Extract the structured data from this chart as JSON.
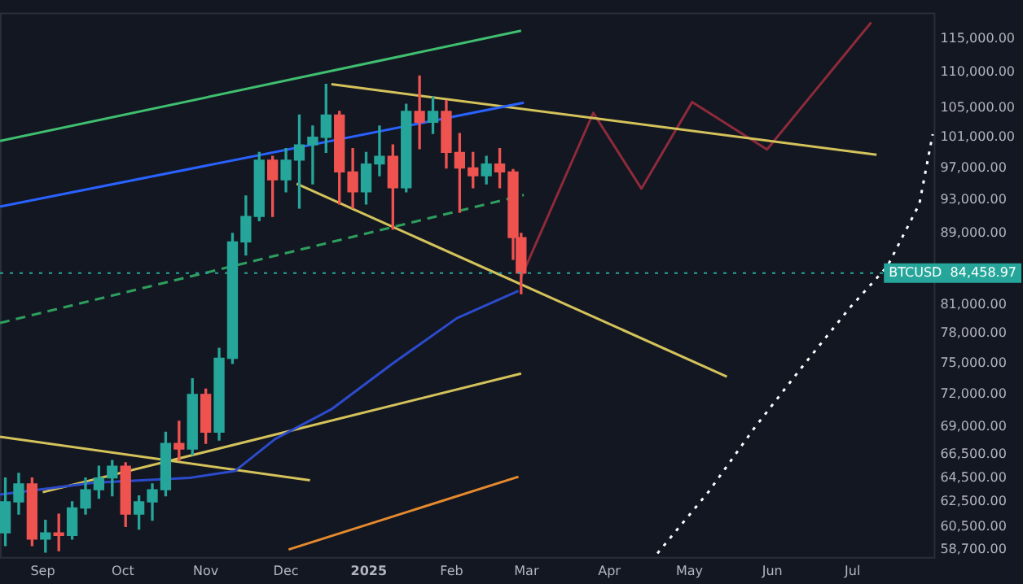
{
  "chart_data": {
    "type": "candlestick",
    "x": [
      "2024-08-18",
      "2024-08-23",
      "2024-08-28",
      "2024-09-02",
      "2024-09-07",
      "2024-09-12",
      "2024-09-17",
      "2024-09-22",
      "2024-09-27",
      "2024-10-02",
      "2024-10-07",
      "2024-10-12",
      "2024-10-17",
      "2024-10-22",
      "2024-10-27",
      "2024-11-01",
      "2024-11-06",
      "2024-11-11",
      "2024-11-16",
      "2024-11-21",
      "2024-11-26",
      "2024-12-01",
      "2024-12-06",
      "2024-12-11",
      "2024-12-16",
      "2024-12-21",
      "2024-12-26",
      "2024-12-31",
      "2025-01-05",
      "2025-01-10",
      "2025-01-15",
      "2025-01-20",
      "2025-01-25",
      "2025-01-30",
      "2025-02-04",
      "2025-02-09",
      "2025-02-14",
      "2025-02-19",
      "2025-02-24",
      "2025-02-27"
    ],
    "ohlc": [
      [
        60000,
        64500,
        59000,
        62500
      ],
      [
        62500,
        64900,
        61500,
        64000
      ],
      [
        64000,
        64500,
        59000,
        59500
      ],
      [
        59500,
        61000,
        58500,
        60000
      ],
      [
        60000,
        61500,
        58600,
        59800
      ],
      [
        59800,
        62500,
        59500,
        62000
      ],
      [
        62000,
        64500,
        61500,
        63500
      ],
      [
        63500,
        65500,
        62800,
        64500
      ],
      [
        64500,
        66000,
        63000,
        65500
      ],
      [
        65500,
        65800,
        60500,
        61500
      ],
      [
        61500,
        63000,
        60300,
        62500
      ],
      [
        62500,
        64000,
        61000,
        63500
      ],
      [
        63500,
        68500,
        63000,
        67500
      ],
      [
        67500,
        69500,
        66000,
        67000
      ],
      [
        67000,
        73500,
        66500,
        72000
      ],
      [
        72000,
        72500,
        67500,
        68500
      ],
      [
        68500,
        76500,
        67800,
        75500
      ],
      [
        75500,
        89000,
        75000,
        88000
      ],
      [
        88000,
        93500,
        86500,
        91000
      ],
      [
        91000,
        99000,
        90500,
        98000
      ],
      [
        98000,
        98500,
        91000,
        95500
      ],
      [
        95500,
        99500,
        94000,
        98000
      ],
      [
        98000,
        104000,
        92000,
        100000
      ],
      [
        100000,
        102500,
        95000,
        101000
      ],
      [
        101000,
        108300,
        99000,
        104000
      ],
      [
        104000,
        104500,
        92500,
        96500
      ],
      [
        96500,
        99500,
        92000,
        94000
      ],
      [
        94000,
        99000,
        92500,
        97500
      ],
      [
        97500,
        102500,
        96000,
        98500
      ],
      [
        98500,
        100000,
        89500,
        94500
      ],
      [
        94500,
        105500,
        94000,
        104500
      ],
      [
        104500,
        109500,
        99500,
        103000
      ],
      [
        103000,
        106500,
        101500,
        104500
      ],
      [
        104500,
        106000,
        97000,
        99000
      ],
      [
        99000,
        101500,
        91500,
        97000
      ],
      [
        97000,
        99000,
        94500,
        96000
      ],
      [
        96000,
        98500,
        95000,
        97500
      ],
      [
        97500,
        99500,
        94500,
        96500
      ],
      [
        96500,
        96800,
        86000,
        88500
      ],
      [
        88500,
        89000,
        82200,
        84458.97
      ]
    ],
    "colors": [
      "#26a69a",
      "#26a69a",
      "#ef5350",
      "#26a69a",
      "#ef5350",
      "#26a69a",
      "#26a69a",
      "#26a69a",
      "#26a69a",
      "#ef5350",
      "#26a69a",
      "#26a69a",
      "#26a69a",
      "#ef5350",
      "#26a69a",
      "#ef5350",
      "#26a69a",
      "#26a69a",
      "#26a69a",
      "#26a69a",
      "#ef5350",
      "#26a69a",
      "#26a69a",
      "#26a69a",
      "#26a69a",
      "#ef5350",
      "#ef5350",
      "#26a69a",
      "#26a69a",
      "#ef5350",
      "#26a69a",
      "#ef5350",
      "#26a69a",
      "#ef5350",
      "#ef5350",
      "#ef5350",
      "#26a69a",
      "#ef5350",
      "#ef5350",
      "#ef5350"
    ],
    "series": [
      {
        "type": "line",
        "color": "#2b4bcc",
        "x": [
          "2024-08-16",
          "2024-09-20",
          "2024-10-26",
          "2024-11-12",
          "2024-11-27",
          "2024-12-18",
          "2025-01-10",
          "2025-02-03",
          "2025-02-26"
        ],
        "values": [
          63100,
          64100,
          64500,
          65100,
          67900,
          70600,
          75000,
          79600,
          82500
        ]
      },
      {
        "type": "line",
        "color": "#2962ff",
        "x": [
          "2024-08-16",
          "2025-02-28"
        ],
        "values": [
          92200,
          105700
        ]
      },
      {
        "type": "line",
        "color": "#3fbf6f",
        "x": [
          "2024-08-16",
          "2025-02-27"
        ],
        "values": [
          100500,
          116200
        ]
      },
      {
        "type": "line",
        "color": "#2e9e5e",
        "line_style": "dashed",
        "x": [
          "2024-08-16",
          "2025-02-28"
        ],
        "values": [
          79100,
          93600
        ]
      },
      {
        "type": "line",
        "color": "#d4c25a",
        "x": [
          "2024-12-18",
          "2025-07-10"
        ],
        "values": [
          108300,
          98700
        ]
      },
      {
        "type": "line",
        "color": "#d4c25a",
        "x": [
          "2024-12-05",
          "2025-05-15"
        ],
        "values": [
          95000,
          73700
        ]
      },
      {
        "type": "line",
        "color": "#d4c25a",
        "x": [
          "2024-09-01",
          "2025-02-27"
        ],
        "values": [
          63300,
          74000
        ]
      },
      {
        "type": "line",
        "color": "#d4c25a",
        "x": [
          "2024-08-16",
          "2024-12-10"
        ],
        "values": [
          68100,
          64300
        ]
      },
      {
        "type": "line",
        "color": "#e68a2e",
        "x": [
          "2024-12-02",
          "2025-02-26"
        ],
        "values": [
          58700,
          64600
        ]
      },
      {
        "type": "line",
        "color": "#8e2a3a",
        "x": [
          "2025-02-27",
          "2025-03-26",
          "2025-04-13",
          "2025-05-02",
          "2025-05-30",
          "2025-07-08"
        ],
        "values": [
          84000,
          104300,
          94400,
          105800,
          99400,
          117500
        ]
      },
      {
        "type": "line",
        "color": "#ffffff",
        "line_style": "dotted",
        "x": [
          "2025-04-19",
          "2025-05-08",
          "2025-05-25",
          "2025-06-12",
          "2025-06-30",
          "2025-07-14",
          "2025-07-26",
          "2025-07-31"
        ],
        "values": [
          58400,
          63300,
          68800,
          74600,
          80700,
          85200,
          92500,
          101400
        ]
      }
    ],
    "log": true,
    "xlim": [
      "2024-08-16",
      "2025-08-01"
    ],
    "xticks": [
      {
        "value": "2024-09-01",
        "label": "Sep"
      },
      {
        "value": "2024-10-01",
        "label": "Oct"
      },
      {
        "value": "2024-11-01",
        "label": "Nov"
      },
      {
        "value": "2024-12-01",
        "label": "Dec"
      },
      {
        "value": "2025-01-01",
        "label": "2025"
      },
      {
        "value": "2025-02-01",
        "label": "Feb"
      },
      {
        "value": "2025-03-01",
        "label": "Mar"
      },
      {
        "value": "2025-04-01",
        "label": "Apr"
      },
      {
        "value": "2025-05-01",
        "label": "May"
      },
      {
        "value": "2025-06-01",
        "label": "Jun"
      },
      {
        "value": "2025-07-01",
        "label": "Jul"
      }
    ],
    "ylim": [
      58000,
      119000
    ],
    "yticks": [
      {
        "value": 58700,
        "label": "58,700.00"
      },
      {
        "value": 60500,
        "label": "60,500.00"
      },
      {
        "value": 62500,
        "label": "62,500.00"
      },
      {
        "value": 64500,
        "label": "64,500.00"
      },
      {
        "value": 66500,
        "label": "66,500.00"
      },
      {
        "value": 69000,
        "label": "69,000.00"
      },
      {
        "value": 72000,
        "label": "72,000.00"
      },
      {
        "value": 75000,
        "label": "75,000.00"
      },
      {
        "value": 78000,
        "label": "78,000.00"
      },
      {
        "value": 81000,
        "label": "81,000.00"
      },
      {
        "value": 89000,
        "label": "89,000.00"
      },
      {
        "value": 93000,
        "label": "93,000.00"
      },
      {
        "value": 97000,
        "label": "97,000.00"
      },
      {
        "value": 101000,
        "label": "101,000.00"
      },
      {
        "value": 105000,
        "label": "105,000.00"
      },
      {
        "value": 110000,
        "label": "110,000.00"
      },
      {
        "value": 115000,
        "label": "115,000.00"
      }
    ],
    "ref_lines": [
      {
        "axis": "y",
        "value": 84458.97,
        "label": "BTCUSD  84,458.97",
        "color": "#26a69a",
        "line_style": "dotted"
      }
    ],
    "grid": false,
    "legend": false
  }
}
